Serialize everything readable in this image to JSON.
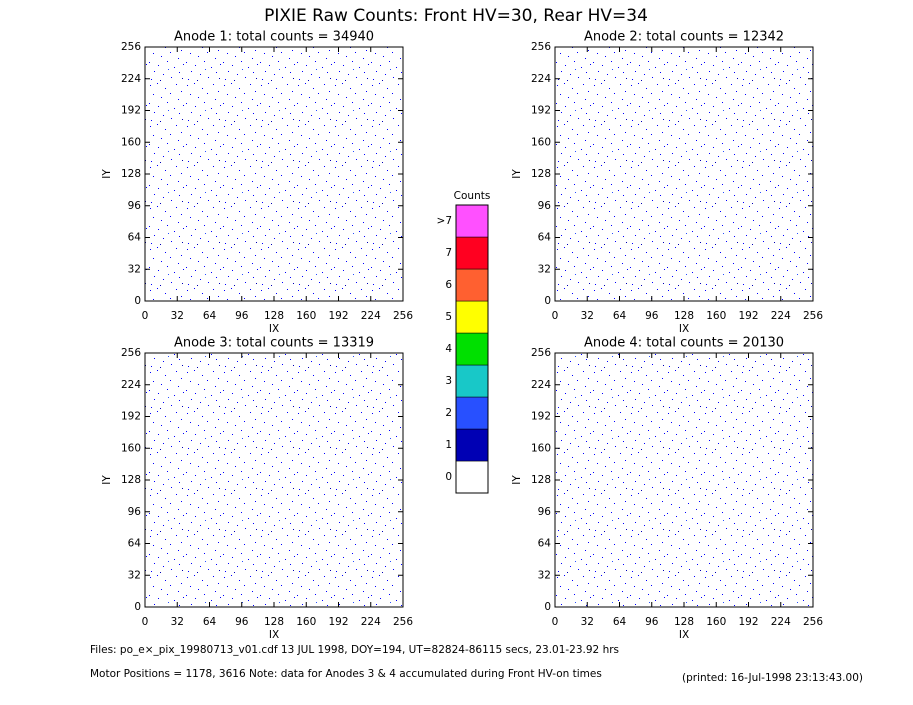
{
  "title": "PIXIE Raw Counts:  Front HV=30, Rear HV=34",
  "chart_data": [
    {
      "type": "heatmap",
      "title": "Anode 1: total counts = 34940",
      "xlabel": "IX",
      "ylabel": "IY",
      "xlim": [
        0,
        256
      ],
      "ylim": [
        0,
        256
      ],
      "xticks": [
        0,
        32,
        64,
        96,
        128,
        160,
        192,
        224,
        256
      ],
      "yticks": [
        0,
        32,
        64,
        96,
        128,
        160,
        192,
        224,
        256
      ]
    },
    {
      "type": "heatmap",
      "title": "Anode 2: total counts = 12342",
      "xlabel": "IX",
      "ylabel": "IY",
      "xlim": [
        0,
        256
      ],
      "ylim": [
        0,
        256
      ],
      "xticks": [
        0,
        32,
        64,
        96,
        128,
        160,
        192,
        224,
        256
      ],
      "yticks": [
        0,
        32,
        64,
        96,
        128,
        160,
        192,
        224,
        256
      ]
    },
    {
      "type": "heatmap",
      "title": "Anode 3: total counts = 13319",
      "xlabel": "IX",
      "ylabel": "IY",
      "xlim": [
        0,
        256
      ],
      "ylim": [
        0,
        256
      ],
      "xticks": [
        0,
        32,
        64,
        96,
        128,
        160,
        192,
        224,
        256
      ],
      "yticks": [
        0,
        32,
        64,
        96,
        128,
        160,
        192,
        224,
        256
      ]
    },
    {
      "type": "heatmap",
      "title": "Anode 4: total counts = 20130",
      "xlabel": "IX",
      "ylabel": "IY",
      "xlim": [
        0,
        256
      ],
      "ylim": [
        0,
        256
      ],
      "xticks": [
        0,
        32,
        64,
        96,
        128,
        160,
        192,
        224,
        256
      ],
      "yticks": [
        0,
        32,
        64,
        96,
        128,
        160,
        192,
        224,
        256
      ]
    }
  ],
  "colorbar": {
    "title": "Counts",
    "levels": [
      {
        "label": "0",
        "color": "#ffffff"
      },
      {
        "label": "1",
        "color": "#0000b4"
      },
      {
        "label": "2",
        "color": "#2850ff"
      },
      {
        "label": "3",
        "color": "#18c8c8"
      },
      {
        "label": "4",
        "color": "#00e000"
      },
      {
        "label": "5",
        "color": "#ffff00"
      },
      {
        "label": "6",
        "color": "#ff6030"
      },
      {
        "label": "7",
        "color": "#ff0020"
      },
      {
        "label": ">7",
        "color": "#ff50ff"
      }
    ]
  },
  "footer": {
    "files": "Files: po_e×_pix_19980713_v01.cdf    13 JUL 1998, DOY=194, UT=82824-86115 secs, 23.01-23.92 hrs",
    "motor": "Motor Positions = 1178, 3616   Note: data for Anodes 3 & 4 accumulated during Front HV-on times",
    "printed": "(printed: 16-Jul-1998 23:13:43.00)"
  }
}
